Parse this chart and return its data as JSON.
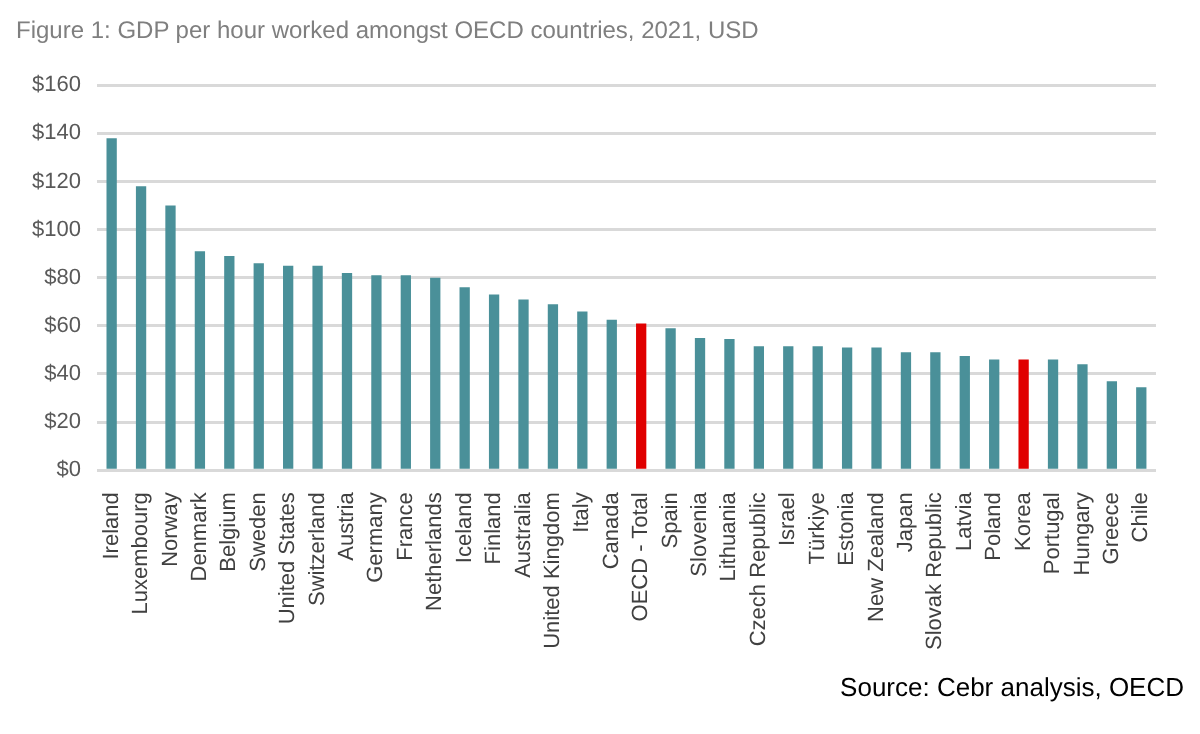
{
  "chart_data": {
    "type": "bar",
    "title": "Figure 1: GDP per hour worked amongst OECD countries, 2021, USD",
    "categories": [
      "Ireland",
      "Luxembourg",
      "Norway",
      "Denmark",
      "Belgium",
      "Sweden",
      "United States",
      "Switzerland",
      "Austria",
      "Germany",
      "France",
      "Netherlands",
      "Iceland",
      "Finland",
      "Australia",
      "United Kingdom",
      "Italy",
      "Canada",
      "OECD - Total",
      "Spain",
      "Slovenia",
      "Lithuania",
      "Czech Republic",
      "Israel",
      "Türkiye",
      "Estonia",
      "New Zealand",
      "Japan",
      "Slovak Republic",
      "Latvia",
      "Poland",
      "Korea",
      "Portugal",
      "Hungary",
      "Greece",
      "Chile"
    ],
    "values": [
      138,
      118,
      110,
      91,
      89,
      86,
      85,
      85,
      82,
      81,
      81,
      80,
      76,
      73,
      71,
      69,
      66,
      62.5,
      61,
      59,
      55,
      54.5,
      51.5,
      51.5,
      51.5,
      51,
      51,
      49,
      49,
      47.5,
      46,
      46,
      46,
      44,
      37,
      34.5
    ],
    "colors": [
      "#4a9099",
      "#4a9099",
      "#4a9099",
      "#4a9099",
      "#4a9099",
      "#4a9099",
      "#4a9099",
      "#4a9099",
      "#4a9099",
      "#4a9099",
      "#4a9099",
      "#4a9099",
      "#4a9099",
      "#4a9099",
      "#4a9099",
      "#4a9099",
      "#4a9099",
      "#4a9099",
      "#e00000",
      "#4a9099",
      "#4a9099",
      "#4a9099",
      "#4a9099",
      "#4a9099",
      "#4a9099",
      "#4a9099",
      "#4a9099",
      "#4a9099",
      "#4a9099",
      "#4a9099",
      "#4a9099",
      "#e00000",
      "#4a9099",
      "#4a9099",
      "#4a9099",
      "#4a9099"
    ],
    "ylim": [
      0,
      160
    ],
    "yticks": [
      {
        "value": 0,
        "label": "$0"
      },
      {
        "value": 20,
        "label": "$20"
      },
      {
        "value": 40,
        "label": "$40"
      },
      {
        "value": 60,
        "label": "$60"
      },
      {
        "value": 80,
        "label": "$80"
      },
      {
        "value": 100,
        "label": "$100"
      },
      {
        "value": 120,
        "label": "$120"
      },
      {
        "value": 140,
        "label": "$140"
      },
      {
        "value": 160,
        "label": "$160"
      }
    ],
    "grid": "y",
    "annotations": [
      "Source: Cebr analysis, OECD"
    ]
  }
}
